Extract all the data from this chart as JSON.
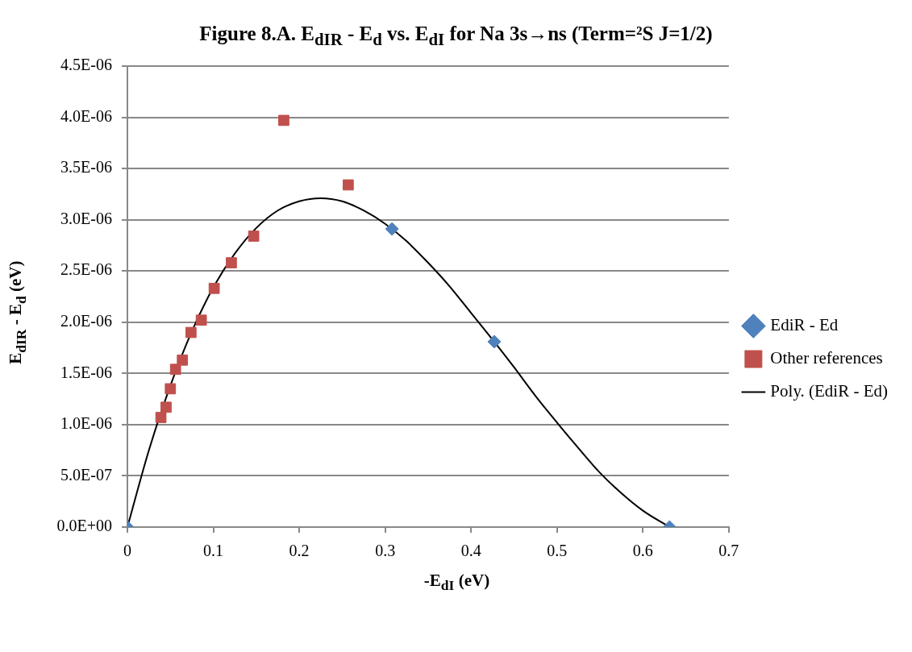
{
  "chart_data": {
    "type": "scatter",
    "title": "Figure 8.A.  E$_{dIR}$ - E$_{d}$ vs. E$_{dI}$ for Na 3s→ns (Term=²S J=1/2)",
    "xlabel": "-E$_{dI}$ (eV)",
    "ylabel": "E$_{dIR}$ - E$_{d}$  (eV)",
    "xlim": [
      0,
      0.7
    ],
    "xticks": [
      0,
      0.1,
      0.2,
      0.3,
      0.4,
      0.5,
      0.6,
      0.7
    ],
    "ylim": [
      0,
      4.5e-06
    ],
    "yticks": [
      {
        "value": 0,
        "label": "0.0E+00"
      },
      {
        "value": 5e-07,
        "label": "5.0E-07"
      },
      {
        "value": 1e-06,
        "label": "1.0E-06"
      },
      {
        "value": 1.5e-06,
        "label": "1.5E-06"
      },
      {
        "value": 2e-06,
        "label": "2.0E-06"
      },
      {
        "value": 2.5e-06,
        "label": "2.5E-06"
      },
      {
        "value": 3e-06,
        "label": "3.0E-06"
      },
      {
        "value": 3.5e-06,
        "label": "3.5E-06"
      },
      {
        "value": 4e-06,
        "label": "4.0E-06"
      },
      {
        "value": 4.5e-06,
        "label": "4.5E-06"
      }
    ],
    "grid": "y",
    "legend": "right",
    "series": [
      {
        "name": "EdiR - Ed",
        "marker": "diamond",
        "color": "#4f81bd",
        "x": [
          0,
          0.308,
          0.427,
          0.631
        ],
        "values": [
          0,
          2.91e-06,
          1.81e-06,
          0
        ]
      },
      {
        "name": "Other references",
        "marker": "square",
        "color": "#c0504d",
        "x": [
          0.039,
          0.045,
          0.05,
          0.056,
          0.064,
          0.074,
          0.086,
          0.101,
          0.121,
          0.147,
          0.182,
          0.257
        ],
        "values": [
          1.07e-06,
          1.17e-06,
          1.35e-06,
          1.54e-06,
          1.63e-06,
          1.9e-06,
          2.02e-06,
          2.33e-06,
          2.58e-06,
          2.84e-06,
          3.97e-06,
          3.34e-06
        ]
      },
      {
        "name": "Poly. (EdiR - Ed)",
        "type": "line",
        "marker": "none",
        "line_style": "solid",
        "color": "#000000",
        "x": [
          0,
          0.025,
          0.05,
          0.075,
          0.1,
          0.125,
          0.15,
          0.175,
          0.2,
          0.225,
          0.25,
          0.275,
          0.3,
          0.325,
          0.35,
          0.375,
          0.4,
          0.425,
          0.45,
          0.475,
          0.5,
          0.525,
          0.55,
          0.575,
          0.6,
          0.631
        ],
        "values": [
          0,
          7.5e-07,
          1.38e-06,
          1.91e-06,
          2.34e-06,
          2.67e-06,
          2.92e-06,
          3.09e-06,
          3.18e-06,
          3.21e-06,
          3.18e-06,
          3.09e-06,
          2.96e-06,
          2.79e-06,
          2.58e-06,
          2.35e-06,
          2.09e-06,
          1.83e-06,
          1.56e-06,
          1.28e-06,
          1.02e-06,
          7.7e-07,
          5.3e-07,
          3.3e-07,
          1.6e-07,
          0
        ]
      }
    ]
  }
}
